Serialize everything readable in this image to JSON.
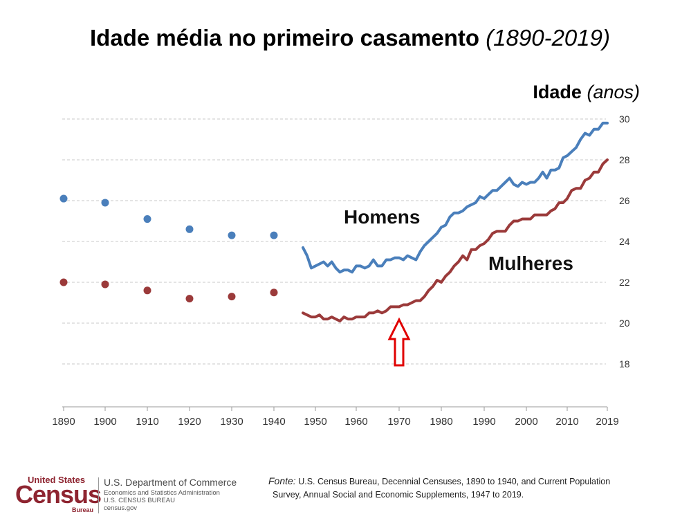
{
  "title": {
    "main": "Idade média no primeiro casamento",
    "years": "(1890-2019)"
  },
  "y_axis_title": {
    "main": "Idade",
    "unit": "(anos)"
  },
  "annotations": {
    "men": "Homens",
    "women": "Mulheres"
  },
  "footer": {
    "logo": {
      "top": "United States",
      "name": "Census",
      "bureau": "Bureau",
      "dept": "U.S. Department of Commerce",
      "line1": "Economics and Statistics Administration",
      "line2": "U.S. CENSUS BUREAU",
      "line3": "census.gov"
    },
    "source_label": "Fonte:",
    "source_line1": "U.S. Census Bureau, Decennial Censuses, 1890 to 1940, and Current Population",
    "source_line2": "Survey, Annual Social and Economic Supplements, 1947 to 2019."
  },
  "colors": {
    "men": "#4a7fbb",
    "women": "#9b3a3a",
    "grid": "#c8c8c8",
    "arrow": "#e00000"
  },
  "chart_data": {
    "type": "line",
    "title": "Idade média no primeiro casamento (1890-2019)",
    "ylabel": "Idade (anos)",
    "xlabel": "",
    "ylim": [
      16.5,
      30.3
    ],
    "x_ticks": [
      "1890",
      "1900",
      "1910",
      "1920",
      "1930",
      "1940",
      "1950",
      "1960",
      "1970",
      "1980",
      "1990",
      "2000",
      "2010",
      "2019"
    ],
    "y_ticks": [
      "18",
      "20",
      "22",
      "24",
      "26",
      "28",
      "30"
    ],
    "grid": true,
    "marker_year": 1970,
    "series": [
      {
        "name": "Homens",
        "census_points": {
          "x": [
            1890,
            1900,
            1910,
            1920,
            1930,
            1940
          ],
          "y": [
            26.1,
            25.9,
            25.1,
            24.6,
            24.3,
            24.3
          ]
        },
        "line": {
          "x": [
            1947,
            1948,
            1949,
            1950,
            1951,
            1952,
            1953,
            1954,
            1955,
            1956,
            1957,
            1958,
            1959,
            1960,
            1961,
            1962,
            1963,
            1964,
            1965,
            1966,
            1967,
            1968,
            1969,
            1970,
            1971,
            1972,
            1973,
            1974,
            1975,
            1976,
            1977,
            1978,
            1979,
            1980,
            1981,
            1982,
            1983,
            1984,
            1985,
            1986,
            1987,
            1988,
            1989,
            1990,
            1991,
            1992,
            1993,
            1994,
            1995,
            1996,
            1997,
            1998,
            1999,
            2000,
            2001,
            2002,
            2003,
            2004,
            2005,
            2006,
            2007,
            2008,
            2009,
            2010,
            2011,
            2012,
            2013,
            2014,
            2015,
            2016,
            2017,
            2018,
            2019
          ],
          "y": [
            23.7,
            23.3,
            22.7,
            22.8,
            22.9,
            23.0,
            22.8,
            23.0,
            22.7,
            22.5,
            22.6,
            22.6,
            22.5,
            22.8,
            22.8,
            22.7,
            22.8,
            23.1,
            22.8,
            22.8,
            23.1,
            23.1,
            23.2,
            23.2,
            23.1,
            23.3,
            23.2,
            23.1,
            23.5,
            23.8,
            24.0,
            24.2,
            24.4,
            24.7,
            24.8,
            25.2,
            25.4,
            25.4,
            25.5,
            25.7,
            25.8,
            25.9,
            26.2,
            26.1,
            26.3,
            26.5,
            26.5,
            26.7,
            26.9,
            27.1,
            26.8,
            26.7,
            26.9,
            26.8,
            26.9,
            26.9,
            27.1,
            27.4,
            27.1,
            27.5,
            27.5,
            27.6,
            28.1,
            28.2,
            28.4,
            28.6,
            29.0,
            29.3,
            29.2,
            29.5,
            29.5,
            29.8,
            29.8
          ]
        }
      },
      {
        "name": "Mulheres",
        "census_points": {
          "x": [
            1890,
            1900,
            1910,
            1920,
            1930,
            1940
          ],
          "y": [
            22.0,
            21.9,
            21.6,
            21.2,
            21.3,
            21.5
          ]
        },
        "line": {
          "x": [
            1947,
            1948,
            1949,
            1950,
            1951,
            1952,
            1953,
            1954,
            1955,
            1956,
            1957,
            1958,
            1959,
            1960,
            1961,
            1962,
            1963,
            1964,
            1965,
            1966,
            1967,
            1968,
            1969,
            1970,
            1971,
            1972,
            1973,
            1974,
            1975,
            1976,
            1977,
            1978,
            1979,
            1980,
            1981,
            1982,
            1983,
            1984,
            1985,
            1986,
            1987,
            1988,
            1989,
            1990,
            1991,
            1992,
            1993,
            1994,
            1995,
            1996,
            1997,
            1998,
            1999,
            2000,
            2001,
            2002,
            2003,
            2004,
            2005,
            2006,
            2007,
            2008,
            2009,
            2010,
            2011,
            2012,
            2013,
            2014,
            2015,
            2016,
            2017,
            2018,
            2019
          ],
          "y": [
            20.5,
            20.4,
            20.3,
            20.3,
            20.4,
            20.2,
            20.2,
            20.3,
            20.2,
            20.1,
            20.3,
            20.2,
            20.2,
            20.3,
            20.3,
            20.3,
            20.5,
            20.5,
            20.6,
            20.5,
            20.6,
            20.8,
            20.8,
            20.8,
            20.9,
            20.9,
            21.0,
            21.1,
            21.1,
            21.3,
            21.6,
            21.8,
            22.1,
            22.0,
            22.3,
            22.5,
            22.8,
            23.0,
            23.3,
            23.1,
            23.6,
            23.6,
            23.8,
            23.9,
            24.1,
            24.4,
            24.5,
            24.5,
            24.5,
            24.8,
            25.0,
            25.0,
            25.1,
            25.1,
            25.1,
            25.3,
            25.3,
            25.3,
            25.3,
            25.5,
            25.6,
            25.9,
            25.9,
            26.1,
            26.5,
            26.6,
            26.6,
            27.0,
            27.1,
            27.4,
            27.4,
            27.8,
            28.0
          ]
        }
      }
    ]
  }
}
